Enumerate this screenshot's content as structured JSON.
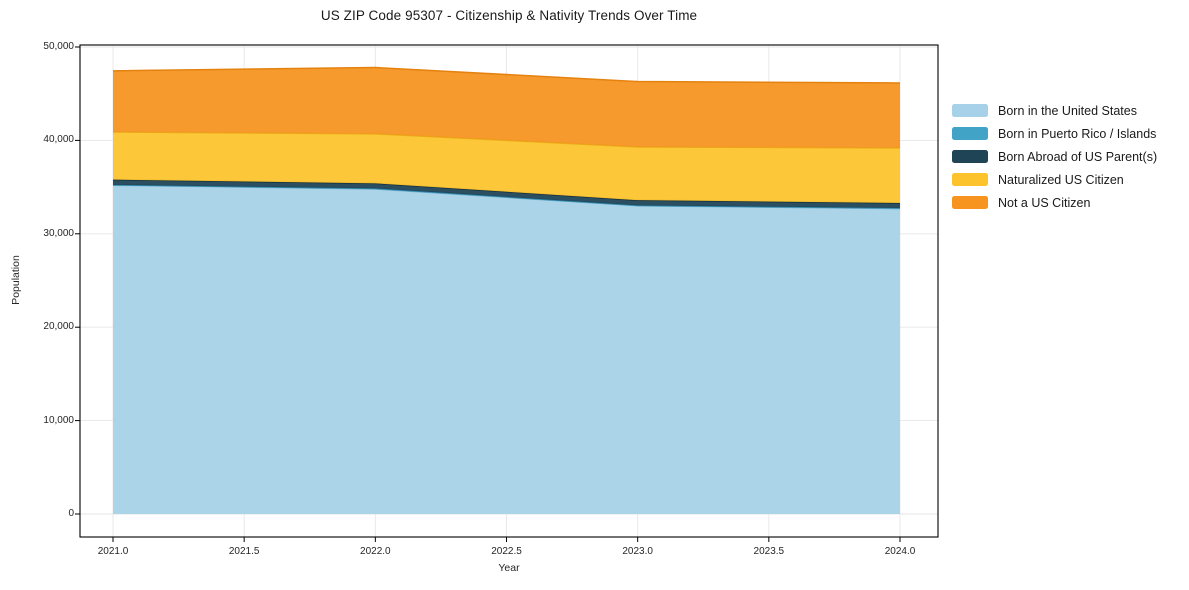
{
  "chart_data": {
    "type": "area",
    "stacked": true,
    "title": "US ZIP Code 95307 - Citizenship & Nativity Trends Over Time",
    "xlabel": "Year",
    "ylabel": "Population",
    "x": [
      2021,
      2022,
      2023,
      2024
    ],
    "series": [
      {
        "name": "Born in the United States",
        "color": "#a6d1e8",
        "edge": "#74afd3",
        "values": [
          35200,
          34800,
          33000,
          32700
        ]
      },
      {
        "name": "Born in Puerto Rico / Islands",
        "color": "#41a3c6",
        "edge": "#2f87a8",
        "values": [
          40,
          60,
          50,
          60
        ]
      },
      {
        "name": "Born Abroad of US Parent(s)",
        "color": "#1e4456",
        "edge": "#14303d",
        "values": [
          560,
          540,
          550,
          540
        ]
      },
      {
        "name": "Naturalized US Citizen",
        "color": "#fcc32d",
        "edge": "#e8ae17",
        "values": [
          5100,
          5300,
          5700,
          5900
        ]
      },
      {
        "name": "Not a US Citizen",
        "color": "#f79420",
        "edge": "#e4820f",
        "values": [
          6550,
          7100,
          7000,
          6950
        ]
      }
    ],
    "stack_totals": [
      47450,
      47800,
      46300,
      46150
    ],
    "xticks": [
      "2021.0",
      "2021.5",
      "2022.0",
      "2022.5",
      "2023.0",
      "2023.5",
      "2024.0"
    ],
    "xtick_values": [
      2021,
      2021.5,
      2022,
      2022.5,
      2023,
      2023.5,
      2024
    ],
    "yticks": [
      "0",
      "10,000",
      "20,000",
      "30,000",
      "40,000",
      "50,000"
    ],
    "ytick_values": [
      0,
      10000,
      20000,
      30000,
      40000,
      50000
    ],
    "xlim": [
      2020.87,
      2024.14
    ],
    "ylim": [
      -2460,
      50220
    ],
    "grid": true,
    "legend_position": "right"
  },
  "colors": {
    "background": "#ffffff",
    "grid": "#e6e6e6",
    "spine": "#000000",
    "tick_text": "#262626",
    "title_text": "#1a1a1a"
  }
}
